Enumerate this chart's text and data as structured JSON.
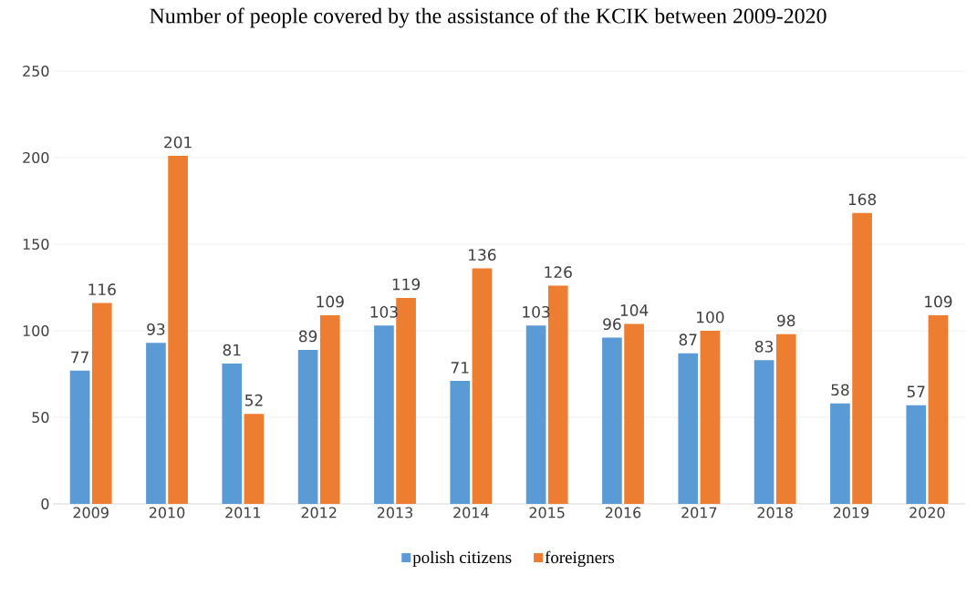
{
  "chart_data": {
    "type": "bar",
    "title": "Number of people covered by the assistance of the KCIK between 2009-2020",
    "categories": [
      "2009",
      "2010",
      "2011",
      "2012",
      "2013",
      "2014",
      "2015",
      "2016",
      "2017",
      "2018",
      "2019",
      "2020"
    ],
    "series": [
      {
        "name": "polish citizens",
        "color": "#5b9bd5",
        "values": [
          77,
          93,
          81,
          89,
          103,
          71,
          103,
          96,
          87,
          83,
          58,
          57
        ]
      },
      {
        "name": "foreigners",
        "color": "#ed7d31",
        "values": [
          116,
          201,
          52,
          109,
          119,
          136,
          126,
          104,
          100,
          98,
          168,
          109
        ]
      }
    ],
    "ylim": [
      0,
      250
    ],
    "yticks": [
      0,
      50,
      100,
      150,
      200,
      250
    ],
    "grid": "y",
    "legend": "bottom",
    "data_labels": true
  }
}
